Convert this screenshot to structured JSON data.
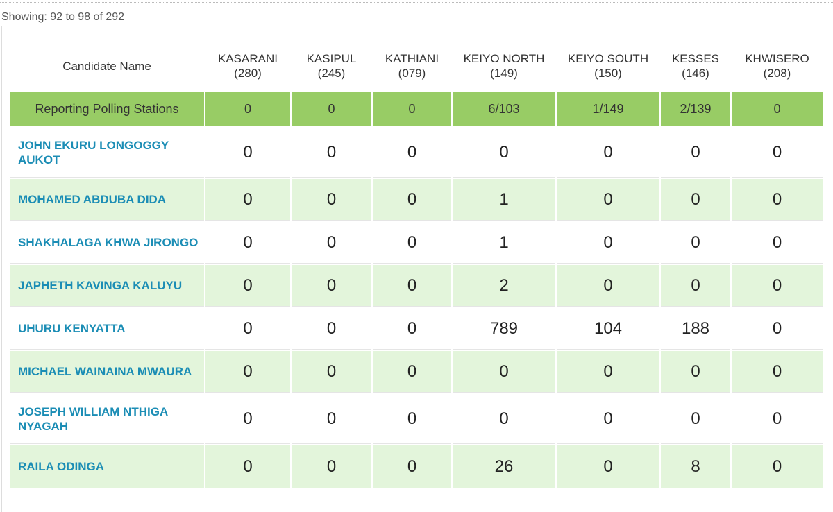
{
  "header": {
    "showing": "Showing: 92 to 98 of 292"
  },
  "table": {
    "header_label": "Candidate Name",
    "columns": [
      {
        "name": "KASARANI",
        "code": "(280)"
      },
      {
        "name": "KASIPUL",
        "code": "(245)"
      },
      {
        "name": "KATHIANI",
        "code": "(079)"
      },
      {
        "name": "KEIYO NORTH",
        "code": "(149)"
      },
      {
        "name": "KEIYO SOUTH",
        "code": "(150)"
      },
      {
        "name": "KESSES",
        "code": "(146)"
      },
      {
        "name": "KHWISERO",
        "code": "(208)"
      }
    ],
    "reporting": {
      "label": "Reporting Polling Stations",
      "values": [
        0,
        0,
        0,
        "6/103",
        "1/149",
        "2/139",
        0
      ]
    },
    "rows": [
      {
        "name": "JOHN EKURU LONGOGGY AUKOT",
        "values": [
          0,
          0,
          0,
          0,
          0,
          0,
          0
        ]
      },
      {
        "name": "MOHAMED ABDUBA DIDA",
        "values": [
          0,
          0,
          0,
          1,
          0,
          0,
          0
        ]
      },
      {
        "name": "SHAKHALAGA KHWA JIRONGO",
        "values": [
          0,
          0,
          0,
          1,
          0,
          0,
          0
        ]
      },
      {
        "name": "JAPHETH KAVINGA KALUYU",
        "values": [
          0,
          0,
          0,
          2,
          0,
          0,
          0
        ]
      },
      {
        "name": "UHURU KENYATTA",
        "values": [
          0,
          0,
          0,
          789,
          104,
          188,
          0
        ]
      },
      {
        "name": "MICHAEL WAINAINA MWAURA",
        "values": [
          0,
          0,
          0,
          0,
          0,
          0,
          0
        ]
      },
      {
        "name": "JOSEPH WILLIAM NTHIGA NYAGAH",
        "values": [
          0,
          0,
          0,
          0,
          0,
          0,
          0
        ]
      },
      {
        "name": "RAILA ODINGA",
        "values": [
          0,
          0,
          0,
          26,
          0,
          8,
          0
        ]
      }
    ]
  }
}
